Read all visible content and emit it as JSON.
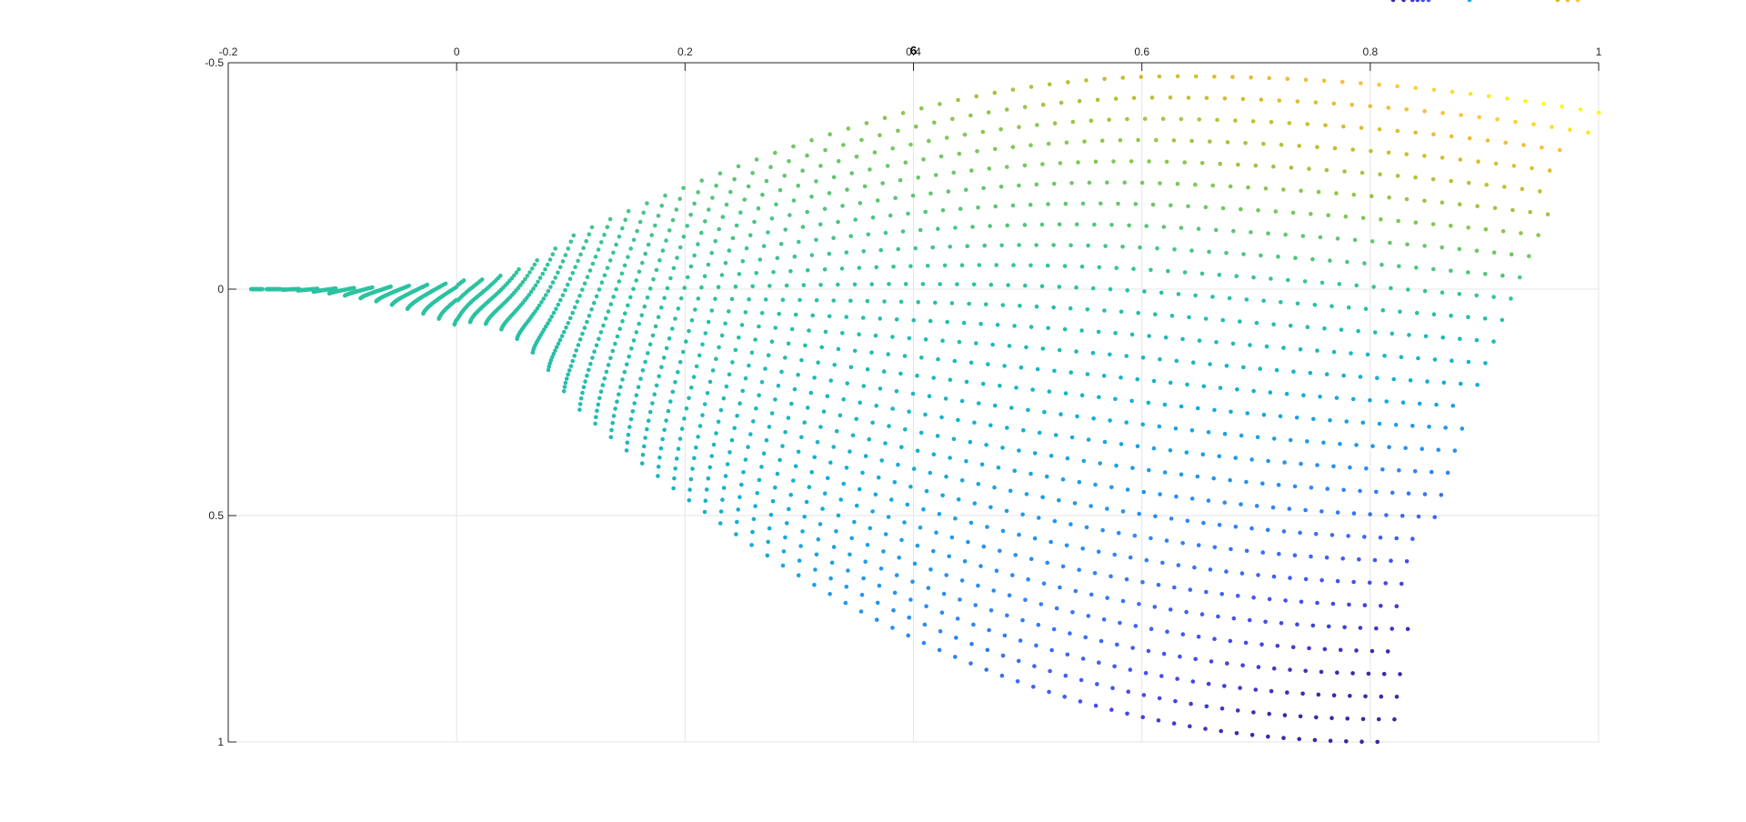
{
  "figure": {
    "title": "6"
  },
  "chart_data": {
    "type": "scatter",
    "title": "6",
    "xlabel": "",
    "ylabel": "",
    "xlim": [
      -0.2,
      1
    ],
    "ylim": [
      -0.5,
      1
    ],
    "y_direction": "reversed",
    "x_axis_location": "top",
    "grid": true,
    "legend": "none",
    "colormap": "parula",
    "x_ticks": [
      "-0.2",
      "0",
      "0.2",
      "0.4",
      "0.6",
      "0.8",
      "1"
    ],
    "y_ticks": [
      "-0.5",
      "0",
      "0.5",
      "1"
    ],
    "x_tick_values": [
      -0.2,
      0,
      0.2,
      0.4,
      0.6,
      0.8,
      1
    ],
    "y_tick_values": [
      -0.5,
      0,
      0.5,
      1
    ],
    "colors": {
      "grid": "#e6e6e6",
      "axis": "#262626",
      "low": "#3e26a8",
      "mid": "#2bc2b0",
      "high": "#f9fb15"
    },
    "series": [
      {
        "values": [
          [
            -0.18,
            0.0
          ],
          [
            0.04,
            0.03
          ],
          [
            0.22,
            0.15
          ],
          [
            0.5,
            0.29
          ],
          [
            0.8,
            0.4
          ],
          [
            0.82,
            1.0
          ]
        ]
      },
      {
        "values": [
          [
            -0.17,
            0.0
          ],
          [
            0.05,
            -0.05
          ],
          [
            0.3,
            -0.3
          ],
          [
            0.63,
            -0.47
          ],
          [
            1.0,
            -0.39
          ]
        ]
      }
    ]
  }
}
